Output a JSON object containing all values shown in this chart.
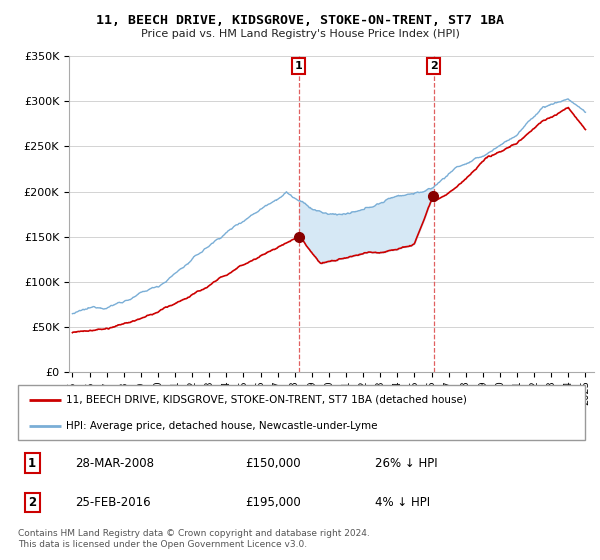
{
  "title": "11, BEECH DRIVE, KIDSGROVE, STOKE-ON-TRENT, ST7 1BA",
  "subtitle": "Price paid vs. HM Land Registry's House Price Index (HPI)",
  "legend_line1": "11, BEECH DRIVE, KIDSGROVE, STOKE-ON-TRENT, ST7 1BA (detached house)",
  "legend_line2": "HPI: Average price, detached house, Newcastle-under-Lyme",
  "annotation1_date": "28-MAR-2008",
  "annotation1_price": "£150,000",
  "annotation1_hpi": "26% ↓ HPI",
  "annotation2_date": "25-FEB-2016",
  "annotation2_price": "£195,000",
  "annotation2_hpi": "4% ↓ HPI",
  "footer": "Contains HM Land Registry data © Crown copyright and database right 2024.\nThis data is licensed under the Open Government Licence v3.0.",
  "red_color": "#cc0000",
  "blue_color": "#7aaed6",
  "fill_color": "#d6e8f5",
  "vline_color": "#e06060",
  "annotation_box_color": "#cc0000",
  "ylim": [
    0,
    350000
  ],
  "sale1_year": 2008.23,
  "sale1_price": 150000,
  "sale2_year": 2016.13,
  "sale2_price": 195000
}
